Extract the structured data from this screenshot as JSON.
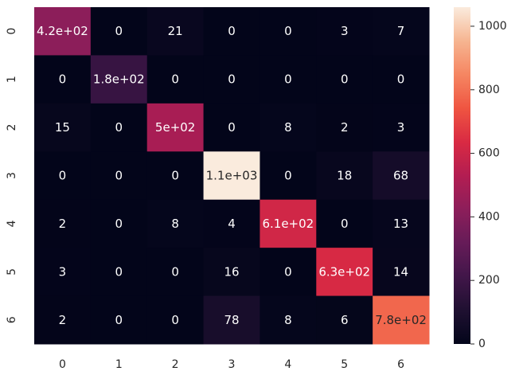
{
  "chart_data": {
    "type": "heatmap",
    "title": "",
    "xlabel": "",
    "ylabel": "",
    "x_categories": [
      "0",
      "1",
      "2",
      "3",
      "4",
      "5",
      "6"
    ],
    "y_categories": [
      "0",
      "1",
      "2",
      "3",
      "4",
      "5",
      "6"
    ],
    "values": [
      [
        420,
        0,
        21,
        0,
        0,
        3,
        7
      ],
      [
        0,
        180,
        0,
        0,
        0,
        0,
        0
      ],
      [
        15,
        0,
        500,
        0,
        8,
        2,
        3
      ],
      [
        0,
        0,
        0,
        1060,
        0,
        18,
        68
      ],
      [
        2,
        0,
        8,
        4,
        610,
        0,
        13
      ],
      [
        3,
        0,
        0,
        16,
        0,
        630,
        14
      ],
      [
        2,
        0,
        0,
        78,
        8,
        6,
        780
      ]
    ],
    "annotations": [
      [
        "4.2e+02",
        "0",
        "21",
        "0",
        "0",
        "3",
        "7"
      ],
      [
        "0",
        "1.8e+02",
        "0",
        "0",
        "0",
        "0",
        "0"
      ],
      [
        "15",
        "0",
        "5e+02",
        "0",
        "8",
        "2",
        "3"
      ],
      [
        "0",
        "0",
        "0",
        "1.1e+03",
        "0",
        "18",
        "68"
      ],
      [
        "2",
        "0",
        "8",
        "4",
        "6.1e+02",
        "0",
        "13"
      ],
      [
        "3",
        "0",
        "0",
        "16",
        "0",
        "6.3e+02",
        "14"
      ],
      [
        "2",
        "0",
        "0",
        "78",
        "8",
        "6",
        "7.8e+02"
      ]
    ],
    "vmin": 0,
    "vmax": 1060,
    "colormap": "rocket",
    "colorbar_ticks": [
      0,
      200,
      400,
      600,
      800,
      1000
    ],
    "grid": false
  }
}
